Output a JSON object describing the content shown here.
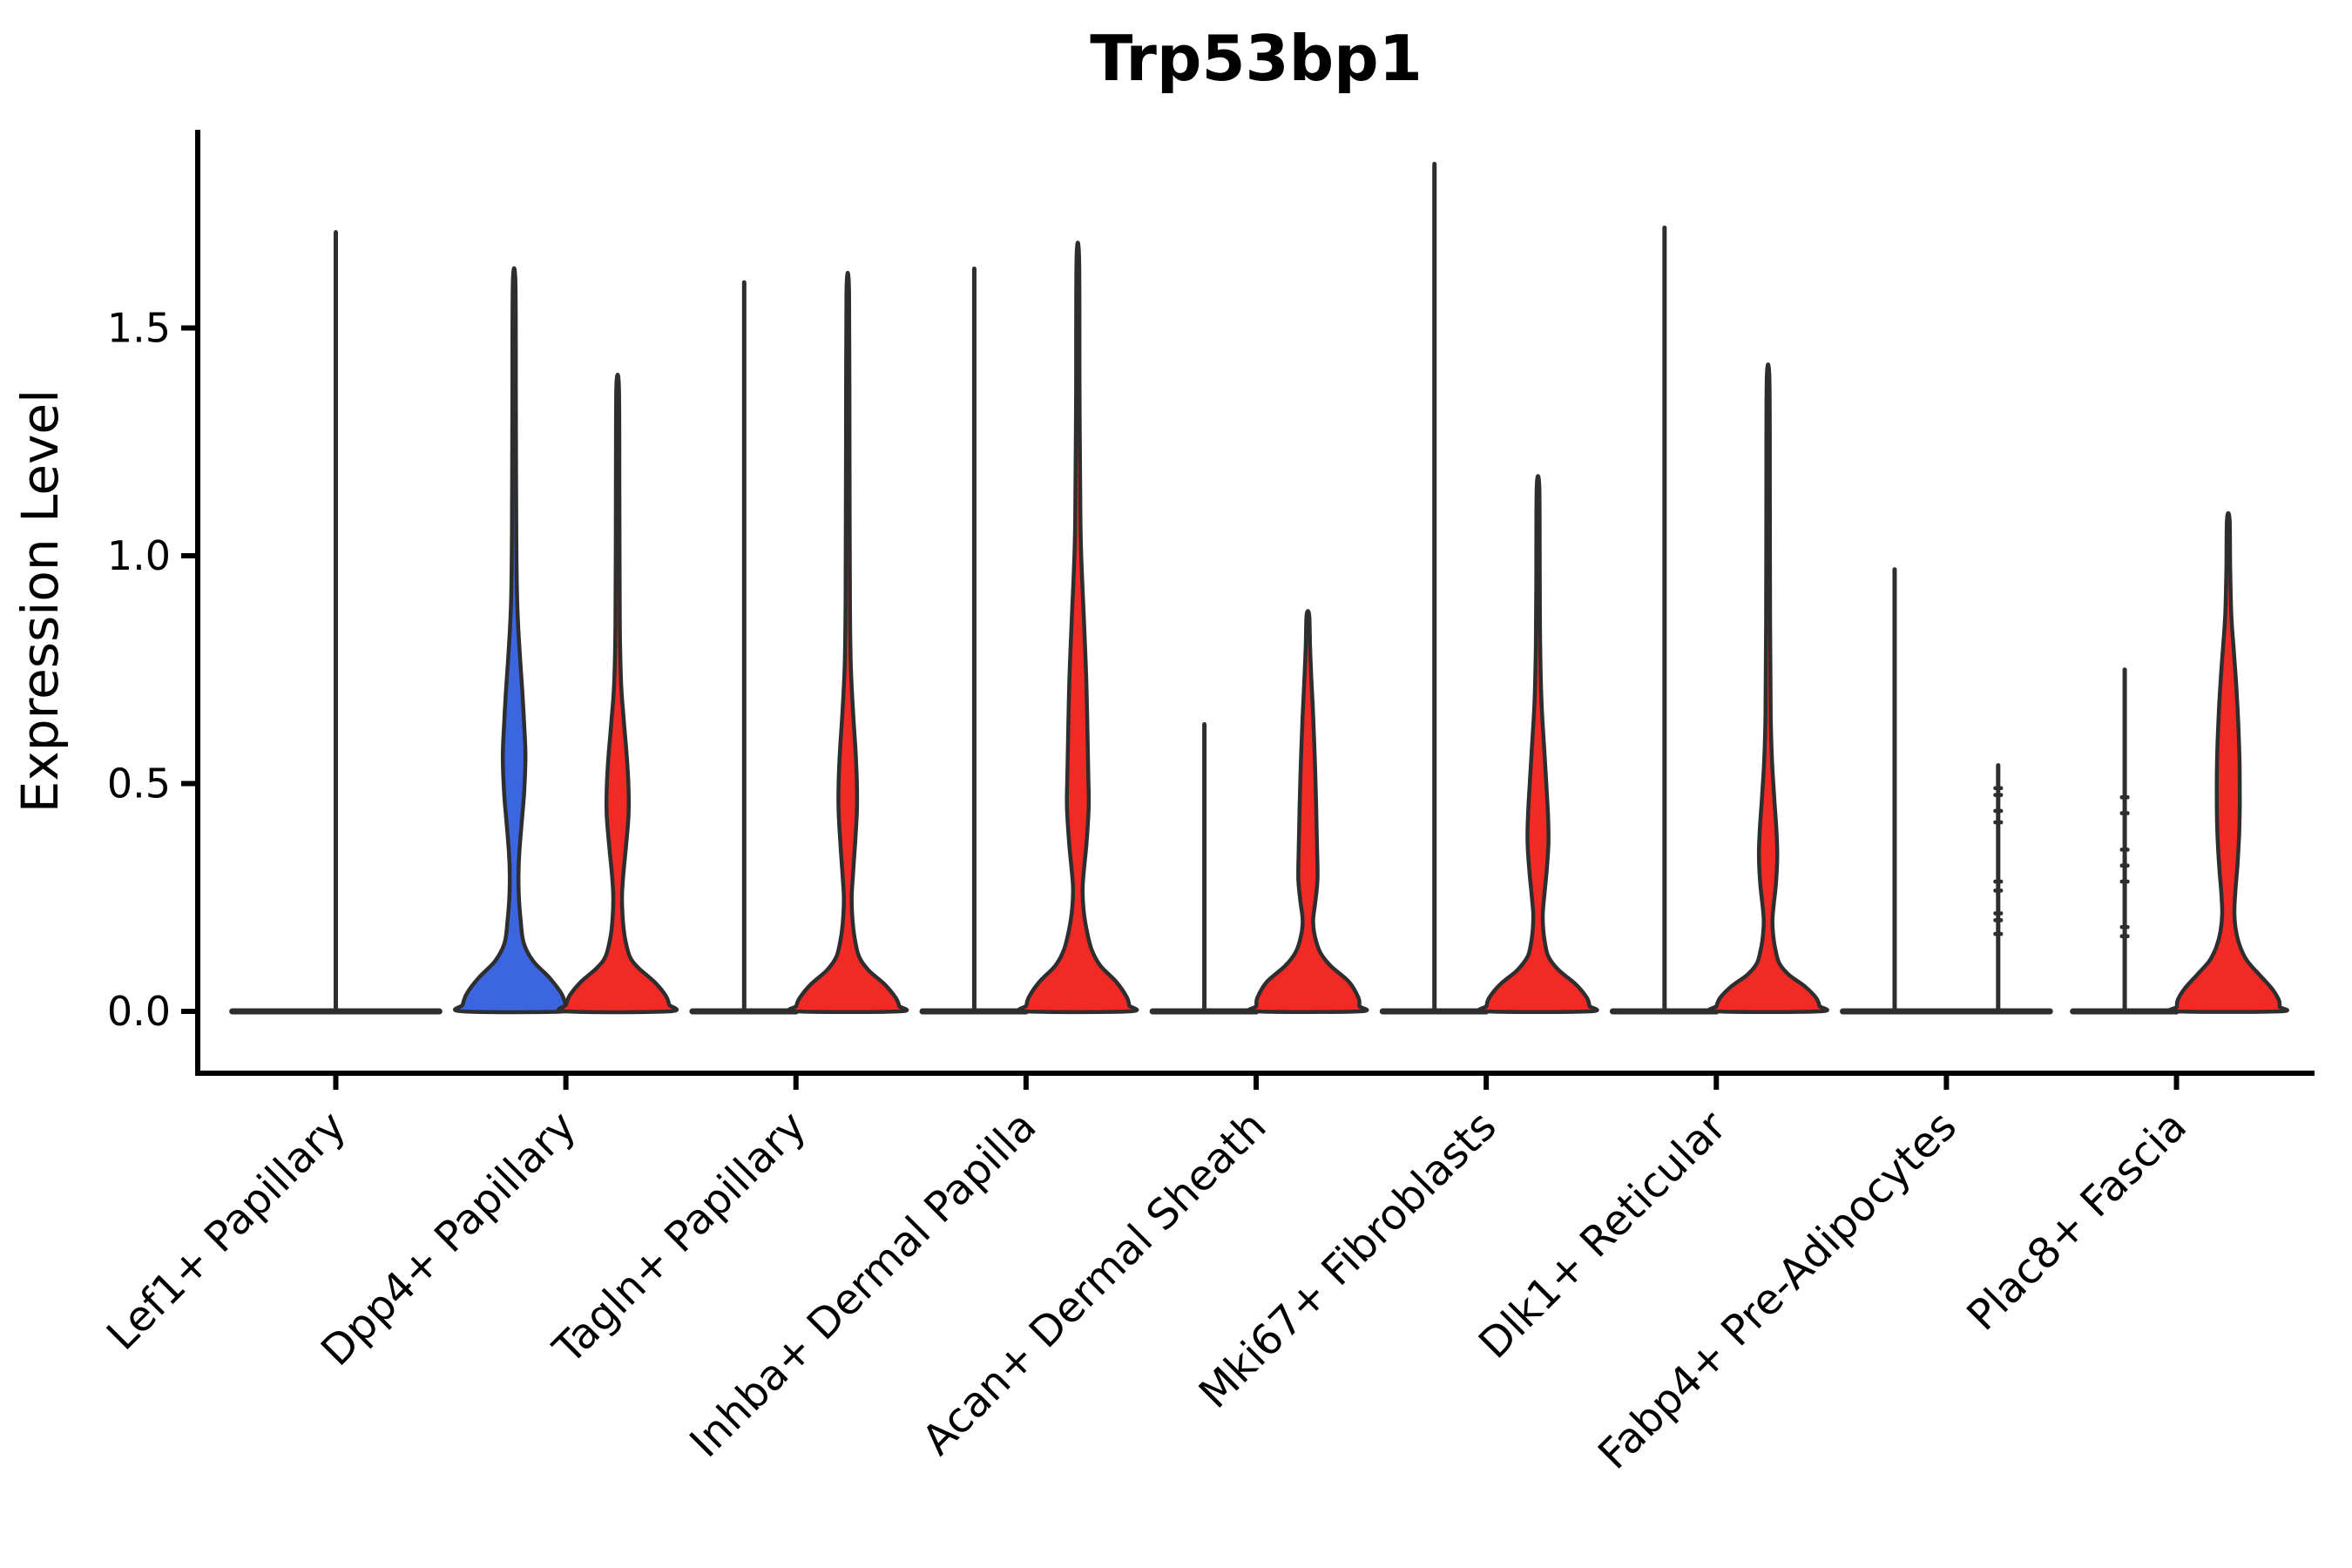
{
  "chart_data": {
    "type": "violin",
    "title": "Trp53bp1",
    "ylabel": "Expression Level",
    "xlabel": "",
    "background": "#ffffff",
    "axis_color": "#000000",
    "outline_color": "#2e2e2e",
    "grid": false,
    "legend": "none",
    "ylim": [
      -0.14,
      1.94
    ],
    "yticks": [
      {
        "label": "0.0",
        "value": 0.0
      },
      {
        "label": "0.5",
        "value": 0.5
      },
      {
        "label": "1.0",
        "value": 1.0
      },
      {
        "label": "1.5",
        "value": 1.5
      }
    ],
    "categories": [
      "Lef1+ Papillary",
      "Dpp4+ Papillary",
      "Tagln+ Papillary",
      "Inhba+ Dermal Papilla",
      "Acan+ Dermal Sheath",
      "Mki67+ Fibroblasts",
      "Dlk1+ Reticular",
      "Fabp4+ Pre-Adipocytes",
      "Plac8+ Fascia"
    ],
    "group_colors": {
      "blue": "#3b66e0",
      "red": "#f22a26"
    },
    "violins": [
      {
        "category_index": 0,
        "position": "center",
        "style": "spike",
        "fill": "none",
        "max_value": 1.71
      },
      {
        "category_index": 1,
        "position": "left",
        "style": "violin",
        "fill": "blue",
        "max_value": 1.6,
        "profile_value_halfwidth": [
          [
            1.6,
            1.5
          ],
          [
            1.35,
            2
          ],
          [
            1.05,
            2.5
          ],
          [
            0.9,
            3.5
          ],
          [
            0.8,
            6
          ],
          [
            0.7,
            9.5
          ],
          [
            0.63,
            11.5
          ],
          [
            0.56,
            13
          ],
          [
            0.48,
            11.5
          ],
          [
            0.41,
            8.5
          ],
          [
            0.35,
            6
          ],
          [
            0.3,
            5
          ],
          [
            0.25,
            5.5
          ],
          [
            0.2,
            7.5
          ],
          [
            0.15,
            11
          ],
          [
            0.11,
            22
          ],
          [
            0.075,
            40
          ],
          [
            0.04,
            54
          ],
          [
            0.015,
            59
          ],
          [
            0,
            59
          ]
        ]
      },
      {
        "category_index": 1,
        "position": "right",
        "style": "violin",
        "fill": "red",
        "max_value": 1.37,
        "profile_value_halfwidth": [
          [
            1.37,
            1.5
          ],
          [
            1.15,
            2
          ],
          [
            0.85,
            2.5
          ],
          [
            0.72,
            4
          ],
          [
            0.64,
            7
          ],
          [
            0.56,
            10.5
          ],
          [
            0.49,
            12.5
          ],
          [
            0.43,
            12.5
          ],
          [
            0.36,
            9.5
          ],
          [
            0.3,
            6.5
          ],
          [
            0.25,
            5
          ],
          [
            0.2,
            6
          ],
          [
            0.16,
            8.5
          ],
          [
            0.12,
            14
          ],
          [
            0.095,
            24
          ],
          [
            0.065,
            42
          ],
          [
            0.035,
            55
          ],
          [
            0.015,
            59
          ],
          [
            0,
            59
          ]
        ]
      },
      {
        "category_index": 2,
        "position": "left",
        "style": "spike",
        "fill": "none",
        "max_value": 1.6
      },
      {
        "category_index": 2,
        "position": "right",
        "style": "violin",
        "fill": "red",
        "max_value": 1.58,
        "profile_value_halfwidth": [
          [
            1.58,
            1.5
          ],
          [
            1.25,
            2
          ],
          [
            0.9,
            2.5
          ],
          [
            0.76,
            3.5
          ],
          [
            0.66,
            6
          ],
          [
            0.57,
            9
          ],
          [
            0.5,
            10.5
          ],
          [
            0.44,
            10.5
          ],
          [
            0.37,
            8.5
          ],
          [
            0.3,
            6
          ],
          [
            0.25,
            4.5
          ],
          [
            0.2,
            5.5
          ],
          [
            0.16,
            8
          ],
          [
            0.12,
            13
          ],
          [
            0.09,
            24
          ],
          [
            0.06,
            42
          ],
          [
            0.03,
            55
          ],
          [
            0.012,
            59
          ],
          [
            0,
            59
          ]
        ]
      },
      {
        "category_index": 3,
        "position": "left",
        "style": "spike",
        "fill": "none",
        "max_value": 1.63
      },
      {
        "category_index": 3,
        "position": "right",
        "style": "violin",
        "fill": "red",
        "max_value": 1.65,
        "profile_value_halfwidth": [
          [
            1.65,
            1.5
          ],
          [
            1.35,
            2
          ],
          [
            1.08,
            3
          ],
          [
            0.97,
            4.5
          ],
          [
            0.86,
            7
          ],
          [
            0.74,
            9.5
          ],
          [
            0.62,
            11
          ],
          [
            0.52,
            12
          ],
          [
            0.45,
            12.5
          ],
          [
            0.37,
            10
          ],
          [
            0.31,
            7
          ],
          [
            0.27,
            5.5
          ],
          [
            0.225,
            6.5
          ],
          [
            0.18,
            10
          ],
          [
            0.135,
            16
          ],
          [
            0.1,
            26
          ],
          [
            0.065,
            44
          ],
          [
            0.032,
            56
          ],
          [
            0.013,
            59
          ],
          [
            0,
            59
          ]
        ]
      },
      {
        "category_index": 4,
        "position": "left",
        "style": "spike",
        "fill": "none",
        "max_value": 0.63
      },
      {
        "category_index": 4,
        "position": "right",
        "style": "violin",
        "fill": "red",
        "max_value": 0.87,
        "profile_value_halfwidth": [
          [
            0.87,
            1.5
          ],
          [
            0.8,
            2.5
          ],
          [
            0.73,
            4
          ],
          [
            0.65,
            6
          ],
          [
            0.55,
            8
          ],
          [
            0.45,
            9.5
          ],
          [
            0.36,
            10.5
          ],
          [
            0.29,
            11
          ],
          [
            0.24,
            8.5
          ],
          [
            0.2,
            6
          ],
          [
            0.165,
            8
          ],
          [
            0.13,
            14
          ],
          [
            0.1,
            26
          ],
          [
            0.065,
            47
          ],
          [
            0.03,
            58
          ],
          [
            0.012,
            59
          ],
          [
            0,
            59
          ]
        ]
      },
      {
        "category_index": 5,
        "position": "left",
        "style": "spike",
        "fill": "none",
        "max_value": 1.86
      },
      {
        "category_index": 5,
        "position": "right",
        "style": "violin",
        "fill": "red",
        "max_value": 1.15,
        "profile_value_halfwidth": [
          [
            1.15,
            1.5
          ],
          [
            0.95,
            2
          ],
          [
            0.8,
            2.5
          ],
          [
            0.68,
            4
          ],
          [
            0.58,
            7
          ],
          [
            0.5,
            9.5
          ],
          [
            0.43,
            11.5
          ],
          [
            0.37,
            12
          ],
          [
            0.31,
            10
          ],
          [
            0.26,
            7.5
          ],
          [
            0.215,
            5.5
          ],
          [
            0.18,
            6
          ],
          [
            0.15,
            8
          ],
          [
            0.12,
            12
          ],
          [
            0.09,
            24
          ],
          [
            0.06,
            43
          ],
          [
            0.03,
            56
          ],
          [
            0.012,
            59
          ],
          [
            0,
            59
          ]
        ]
      },
      {
        "category_index": 6,
        "position": "left",
        "style": "spike",
        "fill": "none",
        "max_value": 1.72
      },
      {
        "category_index": 6,
        "position": "right",
        "style": "violin",
        "fill": "red",
        "max_value": 1.39,
        "profile_value_halfwidth": [
          [
            1.39,
            1.5
          ],
          [
            1.15,
            2
          ],
          [
            0.85,
            2.3
          ],
          [
            0.65,
            3
          ],
          [
            0.55,
            4.5
          ],
          [
            0.47,
            7
          ],
          [
            0.4,
            9.5
          ],
          [
            0.34,
            10.5
          ],
          [
            0.28,
            9
          ],
          [
            0.235,
            6.5
          ],
          [
            0.2,
            5
          ],
          [
            0.165,
            6
          ],
          [
            0.135,
            8.5
          ],
          [
            0.105,
            13
          ],
          [
            0.08,
            24
          ],
          [
            0.055,
            42
          ],
          [
            0.03,
            55
          ],
          [
            0.012,
            59
          ],
          [
            0,
            59
          ]
        ]
      },
      {
        "category_index": 7,
        "position": "left",
        "style": "spike",
        "fill": "none",
        "max_value": 0.97
      },
      {
        "category_index": 7,
        "position": "right",
        "style": "dotted",
        "fill": "none",
        "max_value": 0.54,
        "point_values": [
          0.49,
          0.475,
          0.44,
          0.415,
          0.285,
          0.265,
          0.215,
          0.2,
          0.17
        ]
      },
      {
        "category_index": 8,
        "position": "left",
        "style": "dotted",
        "fill": "none",
        "max_value": 0.75,
        "point_values": [
          0.47,
          0.435,
          0.355,
          0.32,
          0.285,
          0.185,
          0.165
        ]
      },
      {
        "category_index": 8,
        "position": "right",
        "style": "violin",
        "fill": "red",
        "max_value": 1.08,
        "profile_value_halfwidth": [
          [
            1.08,
            1.5
          ],
          [
            0.97,
            2.2
          ],
          [
            0.87,
            3.5
          ],
          [
            0.8,
            6
          ],
          [
            0.72,
            9
          ],
          [
            0.63,
            11.5
          ],
          [
            0.54,
            13
          ],
          [
            0.46,
            13.2
          ],
          [
            0.39,
            12.5
          ],
          [
            0.32,
            10.5
          ],
          [
            0.26,
            8
          ],
          [
            0.215,
            7
          ],
          [
            0.175,
            9
          ],
          [
            0.14,
            14
          ],
          [
            0.11,
            22
          ],
          [
            0.08,
            36
          ],
          [
            0.05,
            50
          ],
          [
            0.025,
            58
          ],
          [
            0.01,
            59
          ],
          [
            0,
            59
          ]
        ]
      }
    ]
  }
}
